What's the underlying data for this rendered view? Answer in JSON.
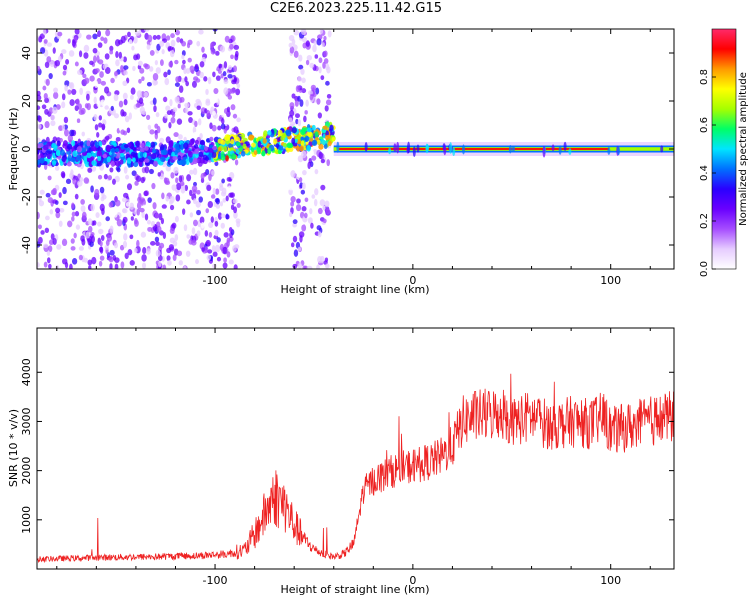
{
  "title": "C2E6.2023.225.11.42.G15",
  "chart_data": [
    {
      "type": "heatmap",
      "xlabel": "Height of straight line (km)",
      "ylabel": "Frequency (Hz)",
      "xlim": [
        -190,
        132
      ],
      "ylim": [
        -50,
        50
      ],
      "xticks": [
        -100,
        0,
        100
      ],
      "yticks": [
        -40,
        -20,
        0,
        20,
        40
      ],
      "colorbar": {
        "label": "Normalized spectral amplitude",
        "range": [
          0,
          1
        ],
        "ticks": [
          "0.0",
          "0.2",
          "0.4",
          "0.6",
          "0.8"
        ],
        "colors": [
          "#ffffff",
          "#e6ccff",
          "#a64dff",
          "#6a00ff",
          "#2a00ff",
          "#0070ff",
          "#00e5ff",
          "#00ff66",
          "#a6ff00",
          "#ffff00",
          "#ff9900",
          "#ff0000",
          "#ff2a6a"
        ]
      },
      "features": [
        {
          "description": "scatter noise",
          "x": [
            -190,
            -88
          ],
          "freq": [
            -50,
            50
          ],
          "amplitude": 0.1
        },
        {
          "description": "scatter noise",
          "x": [
            -62,
            -42
          ],
          "freq": [
            -50,
            50
          ],
          "amplitude": 0.1
        },
        {
          "description": "rising trace",
          "x": [
            -190,
            -40
          ],
          "freq_start": -2,
          "freq_end": 6,
          "amplitude": 0.4
        },
        {
          "description": "steady line",
          "x": [
            -40,
            132
          ],
          "freq": 0,
          "amplitude": 0.95
        }
      ]
    },
    {
      "type": "line",
      "xlabel": "Height of straight line (km)",
      "ylabel": "SNR (10 * v/v)",
      "xlim": [
        -190,
        132
      ],
      "ylim": [
        0,
        4900
      ],
      "xticks": [
        -100,
        0,
        100
      ],
      "yticks": [
        1000,
        2000,
        3000,
        4000
      ],
      "color": "#ee2222",
      "series": [
        {
          "x": [
            -190,
            -170,
            -150,
            -130,
            -110,
            -95,
            -85,
            -80,
            -75,
            -70,
            -65,
            -60,
            -55,
            -50,
            -45,
            -40,
            -35,
            -30,
            -25,
            -20,
            -15,
            -10,
            -5,
            0,
            5,
            10,
            15,
            20,
            25,
            30,
            40,
            45,
            50,
            60,
            70,
            80,
            90,
            97,
            100,
            110,
            120,
            132
          ],
          "y": [
            200,
            220,
            240,
            250,
            270,
            300,
            380,
            700,
            1100,
            1500,
            1300,
            900,
            600,
            400,
            300,
            250,
            300,
            500,
            1600,
            1800,
            1900,
            2000,
            2050,
            2100,
            2150,
            2200,
            2300,
            2500,
            3000,
            3100,
            3150,
            3200,
            3000,
            3100,
            2900,
            3000,
            2950,
            3100,
            2800,
            2900,
            3000,
            3100
          ]
        }
      ]
    }
  ]
}
